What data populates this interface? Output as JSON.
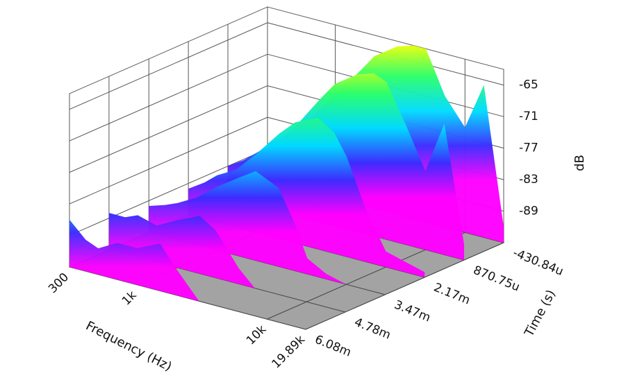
{
  "chart_data": {
    "type": "waterfall",
    "xlabel": "Frequency (Hz)",
    "ylabel": "Time (s)",
    "zlabel": "dB",
    "xscale": "log",
    "xlim": [
      300,
      19890
    ],
    "xticks": [
      300,
      {
        "value": 1000,
        "label": "1k"
      },
      {
        "value": 10000,
        "label": "10k"
      },
      {
        "value": 19890,
        "label": "19.89k"
      }
    ],
    "ylim": [
      0.00608,
      -0.00043084
    ],
    "yticks": [
      {
        "value": -0.00043084,
        "label": "-430.84u"
      },
      {
        "value": 0.00087075,
        "label": "870.75u"
      },
      {
        "value": 0.00217,
        "label": "2.17m"
      },
      {
        "value": 0.00347,
        "label": "3.47m"
      },
      {
        "value": 0.00478,
        "label": "4.78m"
      },
      {
        "value": 0.00608,
        "label": "6.08m"
      }
    ],
    "zlim": [
      -95,
      -62
    ],
    "zticks": [
      -65,
      -71,
      -77,
      -83,
      -89
    ],
    "grid": true,
    "floor_color": "#a3a3a3",
    "colormap": [
      "#ff00ff",
      "#3a2cff",
      "#00dcff",
      "#2cff6a",
      "#ffff00",
      "#ff1e00"
    ],
    "x": [
      300,
      400,
      500,
      700,
      1000,
      1500,
      2000,
      3000,
      4000,
      5000,
      7000,
      10000,
      14000,
      19890
    ],
    "slices": [
      {
        "t": -0.00043084,
        "values": [
          -88,
          -86,
          -84,
          -80,
          -75,
          -70,
          -66,
          -63,
          -62,
          -62,
          -70,
          -75,
          -66,
          -92
        ]
      },
      {
        "t": 0.00087075,
        "values": [
          -89,
          -87,
          -85,
          -82,
          -78,
          -72,
          -68,
          -65,
          -64,
          -65,
          -72,
          -80,
          -70,
          -92
        ]
      },
      {
        "t": 0.00217,
        "values": [
          -90,
          -88,
          -86,
          -84,
          -80,
          -75,
          -72,
          -70,
          -72,
          -76,
          -85,
          -92,
          -93,
          -94
        ]
      },
      {
        "t": 0.00347,
        "values": [
          -90,
          -89,
          -88,
          -86,
          -83,
          -80,
          -78,
          -80,
          -86,
          -92,
          -94,
          -95,
          -95,
          -95
        ]
      },
      {
        "t": 0.00478,
        "values": [
          -88,
          -88,
          -87,
          -88,
          -86,
          -84,
          -86,
          -92,
          -95,
          -95,
          -95,
          -95,
          -95,
          -95
        ]
      },
      {
        "t": 0.00608,
        "values": [
          -86,
          -89,
          -90,
          -88,
          -88,
          -86,
          -90,
          -95,
          -95,
          -95,
          -95,
          -95,
          -95,
          -95
        ]
      }
    ]
  }
}
